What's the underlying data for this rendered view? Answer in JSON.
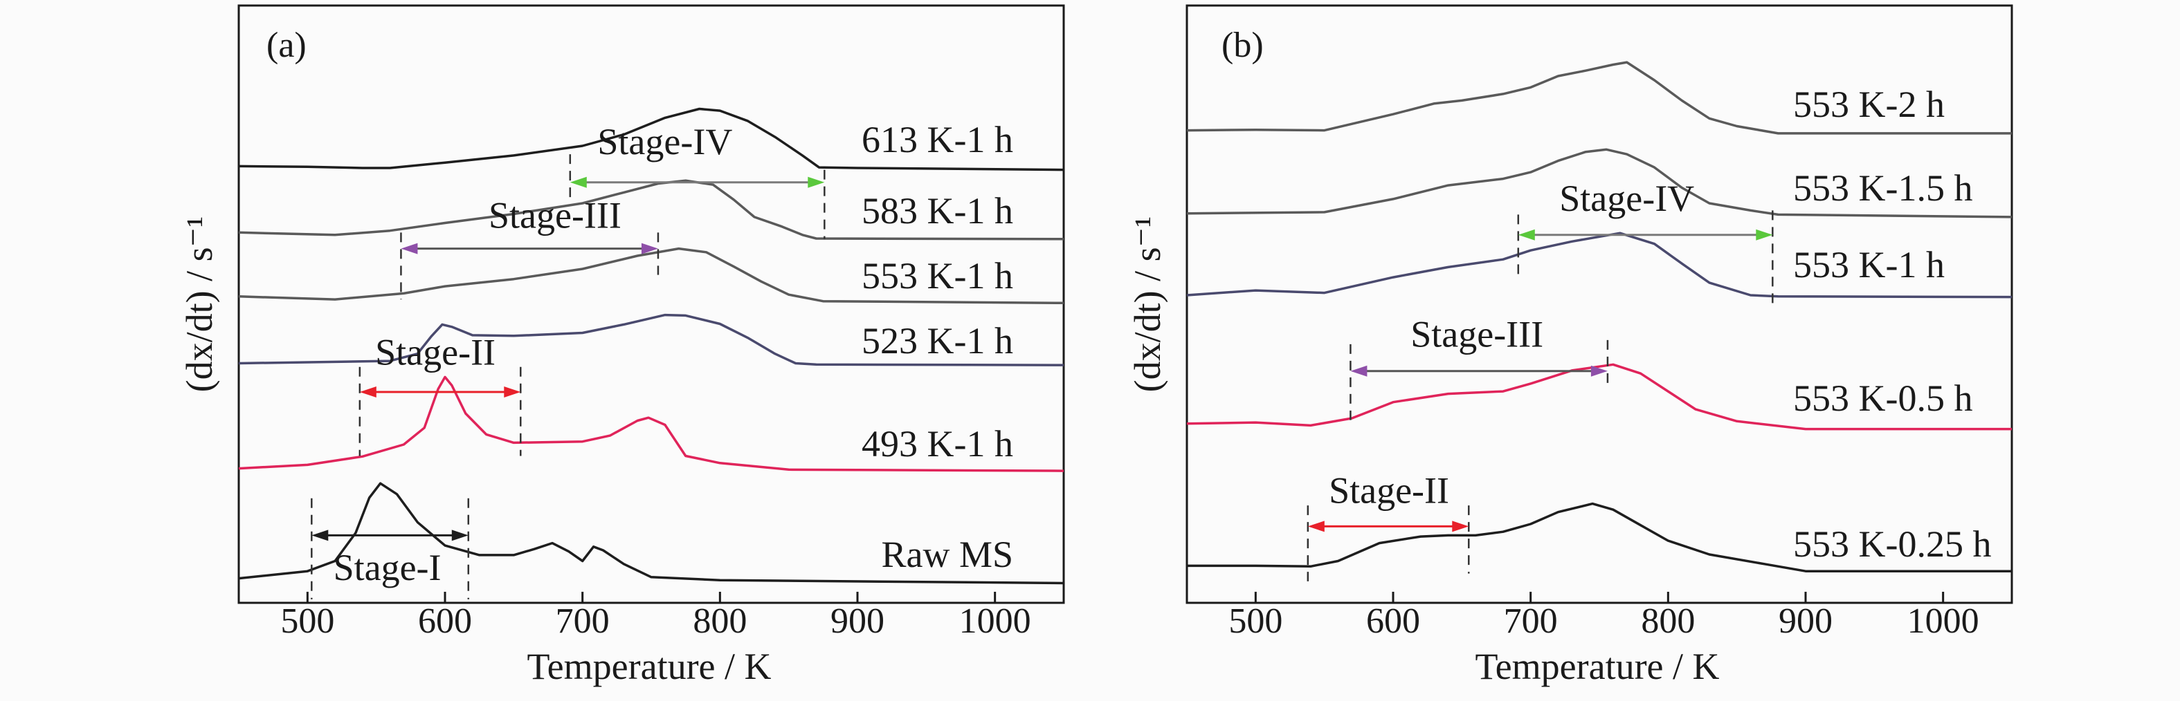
{
  "chart_data": [
    {
      "type": "line",
      "panel_label": "(a)",
      "xlabel": "Temperature / K",
      "ylabel": "(dx/dt) / s⁻¹",
      "xlim": [
        450,
        1050
      ],
      "ylim": [
        0,
        100
      ],
      "xticks": [
        500,
        600,
        700,
        800,
        900,
        1000
      ],
      "grid": false,
      "series": [
        {
          "name": "613 K-1 h",
          "color": "#1e1e1e",
          "points": [
            [
              450,
              73.1
            ],
            [
              500,
              73.0
            ],
            [
              540,
              72.8
            ],
            [
              560,
              72.8
            ],
            [
              600,
              73.7
            ],
            [
              650,
              74.9
            ],
            [
              700,
              76.5
            ],
            [
              730,
              78.4
            ],
            [
              760,
              81.2
            ],
            [
              785,
              82.7
            ],
            [
              800,
              82.4
            ],
            [
              820,
              80.7
            ],
            [
              840,
              78.0
            ],
            [
              860,
              74.9
            ],
            [
              872,
              72.9
            ],
            [
              900,
              72.8
            ],
            [
              1050,
              72.5
            ]
          ]
        },
        {
          "name": "583 K-1 h",
          "color": "#5a5a5a",
          "points": [
            [
              450,
              62.0
            ],
            [
              520,
              61.6
            ],
            [
              560,
              62.3
            ],
            [
              600,
              63.6
            ],
            [
              650,
              65.1
            ],
            [
              700,
              66.9
            ],
            [
              730,
              68.7
            ],
            [
              755,
              70.2
            ],
            [
              775,
              70.7
            ],
            [
              795,
              70.0
            ],
            [
              810,
              67.5
            ],
            [
              825,
              64.6
            ],
            [
              845,
              63.0
            ],
            [
              860,
              61.6
            ],
            [
              870,
              61.0
            ],
            [
              1050,
              60.9
            ]
          ]
        },
        {
          "name": "553 K-1 h",
          "color": "#5a5a5a",
          "points": [
            [
              450,
              51.3
            ],
            [
              520,
              50.8
            ],
            [
              570,
              51.8
            ],
            [
              600,
              53.0
            ],
            [
              650,
              54.2
            ],
            [
              700,
              55.9
            ],
            [
              740,
              58.1
            ],
            [
              770,
              59.3
            ],
            [
              790,
              58.7
            ],
            [
              810,
              56.3
            ],
            [
              830,
              53.8
            ],
            [
              850,
              51.6
            ],
            [
              875,
              50.5
            ],
            [
              1050,
              50.2
            ]
          ]
        },
        {
          "name": "523 K-1 h",
          "color": "#4a4a6e",
          "points": [
            [
              450,
              40.1
            ],
            [
              560,
              40.5
            ],
            [
              580,
              41.7
            ],
            [
              590,
              44.6
            ],
            [
              598,
              46.6
            ],
            [
              605,
              46.2
            ],
            [
              620,
              44.8
            ],
            [
              650,
              44.7
            ],
            [
              700,
              45.2
            ],
            [
              730,
              46.6
            ],
            [
              760,
              48.2
            ],
            [
              775,
              48.1
            ],
            [
              800,
              46.7
            ],
            [
              820,
              44.4
            ],
            [
              840,
              41.7
            ],
            [
              855,
              40.1
            ],
            [
              870,
              39.9
            ],
            [
              1050,
              39.8
            ]
          ]
        },
        {
          "name": "493 K-1 h",
          "color": "#e0245a",
          "points": [
            [
              450,
              22.5
            ],
            [
              500,
              23.1
            ],
            [
              540,
              24.5
            ],
            [
              570,
              26.5
            ],
            [
              585,
              29.3
            ],
            [
              595,
              35.8
            ],
            [
              600,
              37.8
            ],
            [
              605,
              36.4
            ],
            [
              615,
              31.7
            ],
            [
              630,
              28.2
            ],
            [
              650,
              26.8
            ],
            [
              700,
              27.0
            ],
            [
              720,
              28.0
            ],
            [
              740,
              30.5
            ],
            [
              748,
              31.0
            ],
            [
              760,
              29.8
            ],
            [
              775,
              24.6
            ],
            [
              800,
              23.4
            ],
            [
              850,
              22.3
            ],
            [
              1050,
              22.1
            ]
          ]
        },
        {
          "name": "Raw MS",
          "color": "#1e1e1e",
          "points": [
            [
              450,
              4.1
            ],
            [
              500,
              5.3
            ],
            [
              520,
              7.0
            ],
            [
              535,
              11.7
            ],
            [
              545,
              17.6
            ],
            [
              553,
              20.0
            ],
            [
              565,
              18.2
            ],
            [
              580,
              13.5
            ],
            [
              600,
              9.6
            ],
            [
              625,
              8.0
            ],
            [
              650,
              8.0
            ],
            [
              665,
              9.0
            ],
            [
              678,
              10.0
            ],
            [
              690,
              8.6
            ],
            [
              700,
              7.0
            ],
            [
              708,
              9.4
            ],
            [
              715,
              8.8
            ],
            [
              730,
              6.5
            ],
            [
              750,
              4.3
            ],
            [
              800,
              3.8
            ],
            [
              1050,
              3.3
            ]
          ]
        }
      ],
      "annotations": [
        {
          "label": "Stage-I",
          "color": "#1e1e1e",
          "x_range": [
            503,
            617
          ],
          "arrow_y": 11.3,
          "left_dash": [
            17.5,
            0.6
          ],
          "right_dash": [
            17.5,
            0.6
          ],
          "label_x": 558,
          "label_y": 3.8
        },
        {
          "label": "Stage-II",
          "color": "#e8202a",
          "x_range": [
            538,
            655
          ],
          "arrow_y": 35.3,
          "left_dash": [
            39.5,
            24.6
          ],
          "right_dash": [
            39.5,
            24.6
          ],
          "label_x": 593,
          "label_y": 39.9
        },
        {
          "label": "Stage-III",
          "color": "#8e4fa8",
          "x_range": [
            568,
            755
          ],
          "arrow_y": 59.3,
          "left_dash": [
            62.0,
            50.8
          ],
          "right_dash": [
            62.0,
            54.9
          ],
          "label_x": 680,
          "label_y": 62.8
        },
        {
          "label": "Stage-IV",
          "color": "#5ac83c",
          "x_range": [
            691,
            876
          ],
          "arrow_y": 70.4,
          "left_dash": [
            75.1,
            67.6
          ],
          "right_dash": [
            72.5,
            60.9
          ],
          "label_x": 760,
          "label_y": 75.1
        }
      ]
    },
    {
      "type": "line",
      "panel_label": "(b)",
      "xlabel": "Temperature / K",
      "ylabel": "(dx/dt) / s⁻¹",
      "xlim": [
        450,
        1050
      ],
      "ylim": [
        0,
        100
      ],
      "xticks": [
        500,
        600,
        700,
        800,
        900,
        1000
      ],
      "grid": false,
      "series": [
        {
          "name": "553 K-2 h",
          "color": "#5a5a5a",
          "points": [
            [
              450,
              79.1
            ],
            [
              500,
              79.2
            ],
            [
              550,
              79.1
            ],
            [
              600,
              81.8
            ],
            [
              630,
              83.6
            ],
            [
              650,
              84.1
            ],
            [
              680,
              85.2
            ],
            [
              700,
              86.3
            ],
            [
              720,
              88.2
            ],
            [
              740,
              89.1
            ],
            [
              760,
              90.1
            ],
            [
              770,
              90.5
            ],
            [
              790,
              87.5
            ],
            [
              810,
              84.1
            ],
            [
              830,
              81.1
            ],
            [
              850,
              79.8
            ],
            [
              880,
              78.6
            ],
            [
              1050,
              78.6
            ]
          ]
        },
        {
          "name": "553 K-1.5 h",
          "color": "#5a5a5a",
          "points": [
            [
              450,
              65.2
            ],
            [
              550,
              65.4
            ],
            [
              600,
              67.6
            ],
            [
              640,
              69.9
            ],
            [
              680,
              71.0
            ],
            [
              700,
              72.1
            ],
            [
              720,
              74.0
            ],
            [
              740,
              75.5
            ],
            [
              755,
              75.9
            ],
            [
              770,
              75.1
            ],
            [
              790,
              72.9
            ],
            [
              810,
              69.5
            ],
            [
              830,
              66.9
            ],
            [
              860,
              65.7
            ],
            [
              880,
              65.0
            ],
            [
              1050,
              64.6
            ]
          ]
        },
        {
          "name": "553 K-1 h",
          "color": "#4a4a6e",
          "points": [
            [
              450,
              51.5
            ],
            [
              500,
              52.3
            ],
            [
              550,
              51.9
            ],
            [
              600,
              54.5
            ],
            [
              640,
              56.2
            ],
            [
              680,
              57.5
            ],
            [
              700,
              59.0
            ],
            [
              730,
              60.5
            ],
            [
              765,
              61.9
            ],
            [
              790,
              60.1
            ],
            [
              810,
              56.8
            ],
            [
              830,
              53.6
            ],
            [
              860,
              51.5
            ],
            [
              880,
              51.3
            ],
            [
              1050,
              51.2
            ]
          ]
        },
        {
          "name": "553 K-0.5 h",
          "color": "#e0245a",
          "points": [
            [
              450,
              30.0
            ],
            [
              500,
              30.2
            ],
            [
              540,
              29.7
            ],
            [
              570,
              30.9
            ],
            [
              600,
              33.6
            ],
            [
              640,
              35.0
            ],
            [
              680,
              35.4
            ],
            [
              700,
              36.7
            ],
            [
              730,
              38.9
            ],
            [
              760,
              39.9
            ],
            [
              780,
              38.4
            ],
            [
              800,
              35.4
            ],
            [
              820,
              32.4
            ],
            [
              850,
              30.4
            ],
            [
              900,
              29.1
            ],
            [
              1050,
              29.1
            ]
          ]
        },
        {
          "name": "553 K-0.25 h",
          "color": "#1e1e1e",
          "points": [
            [
              450,
              6.2
            ],
            [
              500,
              6.2
            ],
            [
              540,
              6.1
            ],
            [
              560,
              7.0
            ],
            [
              590,
              10.0
            ],
            [
              620,
              11.1
            ],
            [
              640,
              11.3
            ],
            [
              660,
              11.3
            ],
            [
              680,
              11.9
            ],
            [
              700,
              13.2
            ],
            [
              720,
              15.2
            ],
            [
              745,
              16.6
            ],
            [
              760,
              15.6
            ],
            [
              780,
              13.0
            ],
            [
              800,
              10.4
            ],
            [
              830,
              8.1
            ],
            [
              870,
              6.5
            ],
            [
              900,
              5.3
            ],
            [
              1050,
              5.3
            ]
          ]
        }
      ],
      "annotations": [
        {
          "label": "Stage-II",
          "color": "#e8202a",
          "x_range": [
            538,
            655
          ],
          "arrow_y": 12.8,
          "left_dash": [
            16.3,
            3.6
          ],
          "right_dash": [
            16.3,
            4.9
          ],
          "label_x": 597,
          "label_y": 16.7
        },
        {
          "label": "Stage-III",
          "color": "#8e4fa8",
          "x_range": [
            569,
            756
          ],
          "arrow_y": 38.8,
          "left_dash": [
            43.3,
            30.6
          ],
          "right_dash": [
            44.0,
            36.6
          ],
          "label_x": 661,
          "label_y": 42.9
        },
        {
          "label": "Stage-IV",
          "color": "#5ac83c",
          "x_range": [
            691,
            876
          ],
          "arrow_y": 61.6,
          "left_dash": [
            65.0,
            54.9
          ],
          "right_dash": [
            65.7,
            49.3
          ],
          "label_x": 770,
          "label_y": 65.6
        }
      ]
    }
  ]
}
